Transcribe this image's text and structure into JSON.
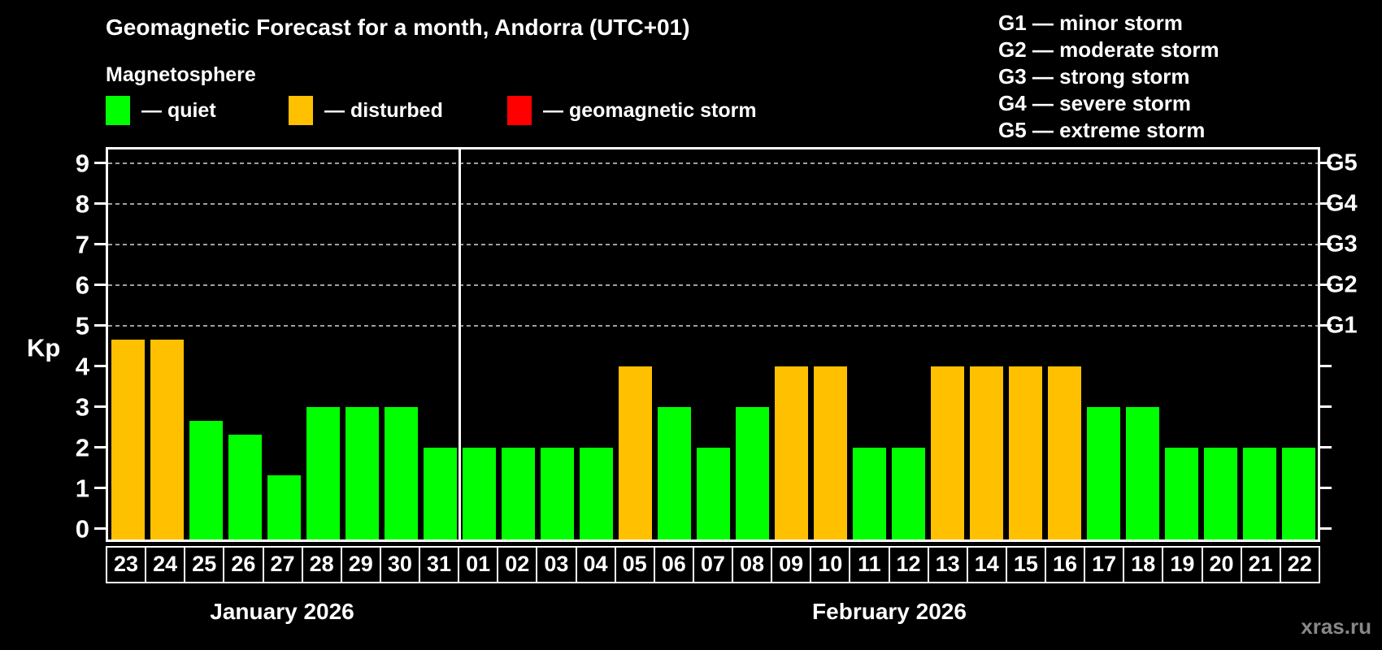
{
  "header": {
    "title": "Geomagnetic Forecast for a month, Andorra (UTC+01)",
    "subtitle": "Magnetosphere"
  },
  "legend": {
    "items": [
      {
        "name": "quiet",
        "label": "— quiet",
        "color": "#00ff00"
      },
      {
        "name": "disturbed",
        "label": "— disturbed",
        "color": "#ffc000"
      },
      {
        "name": "storm",
        "label": "— geomagnetic storm",
        "color": "#ff0000"
      }
    ]
  },
  "storm_scale": [
    "G1 — minor storm",
    "G2 — moderate storm",
    "G3 — strong storm",
    "G4 — severe storm",
    "G5 — extreme storm"
  ],
  "axis": {
    "kp_label": "Kp",
    "kp_ticks": [
      "0",
      "1",
      "2",
      "3",
      "4",
      "5",
      "6",
      "7",
      "8",
      "9"
    ],
    "g_ticks": [
      {
        "text": "G1",
        "kp": 5
      },
      {
        "text": "G2",
        "kp": 6
      },
      {
        "text": "G3",
        "kp": 7
      },
      {
        "text": "G4",
        "kp": 8
      },
      {
        "text": "G5",
        "kp": 9
      }
    ]
  },
  "months": [
    {
      "label": "January 2026",
      "days": 9
    },
    {
      "label": "February 2026",
      "days": 22
    }
  ],
  "chart_data": {
    "type": "bar",
    "title": "Geomagnetic Forecast for a month, Andorra (UTC+01)",
    "xlabel": "",
    "ylabel": "Kp",
    "ylim": [
      0,
      9.7
    ],
    "grid": "horizontal dashed lines at Kp 5,6,7,8,9 (G1–G5 levels)",
    "legend_position": "top-left",
    "bars": [
      {
        "month": "January 2026",
        "day": "23",
        "kp": 4.67,
        "status": "disturbed"
      },
      {
        "month": "January 2026",
        "day": "24",
        "kp": 4.67,
        "status": "disturbed"
      },
      {
        "month": "January 2026",
        "day": "25",
        "kp": 2.67,
        "status": "quiet"
      },
      {
        "month": "January 2026",
        "day": "26",
        "kp": 2.33,
        "status": "quiet"
      },
      {
        "month": "January 2026",
        "day": "27",
        "kp": 1.33,
        "status": "quiet"
      },
      {
        "month": "January 2026",
        "day": "28",
        "kp": 3.0,
        "status": "quiet"
      },
      {
        "month": "January 2026",
        "day": "29",
        "kp": 3.0,
        "status": "quiet"
      },
      {
        "month": "January 2026",
        "day": "30",
        "kp": 3.0,
        "status": "quiet"
      },
      {
        "month": "January 2026",
        "day": "31",
        "kp": 2.0,
        "status": "quiet"
      },
      {
        "month": "February 2026",
        "day": "01",
        "kp": 2.0,
        "status": "quiet"
      },
      {
        "month": "February 2026",
        "day": "02",
        "kp": 2.0,
        "status": "quiet"
      },
      {
        "month": "February 2026",
        "day": "03",
        "kp": 2.0,
        "status": "quiet"
      },
      {
        "month": "February 2026",
        "day": "04",
        "kp": 2.0,
        "status": "quiet"
      },
      {
        "month": "February 2026",
        "day": "05",
        "kp": 4.0,
        "status": "disturbed"
      },
      {
        "month": "February 2026",
        "day": "06",
        "kp": 3.0,
        "status": "quiet"
      },
      {
        "month": "February 2026",
        "day": "07",
        "kp": 2.0,
        "status": "quiet"
      },
      {
        "month": "February 2026",
        "day": "08",
        "kp": 3.0,
        "status": "quiet"
      },
      {
        "month": "February 2026",
        "day": "09",
        "kp": 4.0,
        "status": "disturbed"
      },
      {
        "month": "February 2026",
        "day": "10",
        "kp": 4.0,
        "status": "disturbed"
      },
      {
        "month": "February 2026",
        "day": "11",
        "kp": 2.0,
        "status": "quiet"
      },
      {
        "month": "February 2026",
        "day": "12",
        "kp": 2.0,
        "status": "quiet"
      },
      {
        "month": "February 2026",
        "day": "13",
        "kp": 4.0,
        "status": "disturbed"
      },
      {
        "month": "February 2026",
        "day": "14",
        "kp": 4.0,
        "status": "disturbed"
      },
      {
        "month": "February 2026",
        "day": "15",
        "kp": 4.0,
        "status": "disturbed"
      },
      {
        "month": "February 2026",
        "day": "16",
        "kp": 4.0,
        "status": "disturbed"
      },
      {
        "month": "February 2026",
        "day": "17",
        "kp": 3.0,
        "status": "quiet"
      },
      {
        "month": "February 2026",
        "day": "18",
        "kp": 3.0,
        "status": "quiet"
      },
      {
        "month": "February 2026",
        "day": "19",
        "kp": 2.0,
        "status": "quiet"
      },
      {
        "month": "February 2026",
        "day": "20",
        "kp": 2.0,
        "status": "quiet"
      },
      {
        "month": "February 2026",
        "day": "21",
        "kp": 2.0,
        "status": "quiet"
      },
      {
        "month": "February 2026",
        "day": "22",
        "kp": 2.0,
        "status": "quiet"
      }
    ]
  },
  "app": {
    "watermark": "xras.ru"
  },
  "colors": {
    "background": "#000000",
    "axis": "#ffffff",
    "gridline": "#a0a0a0",
    "text": "#ffffff",
    "watermark": "#888888"
  }
}
